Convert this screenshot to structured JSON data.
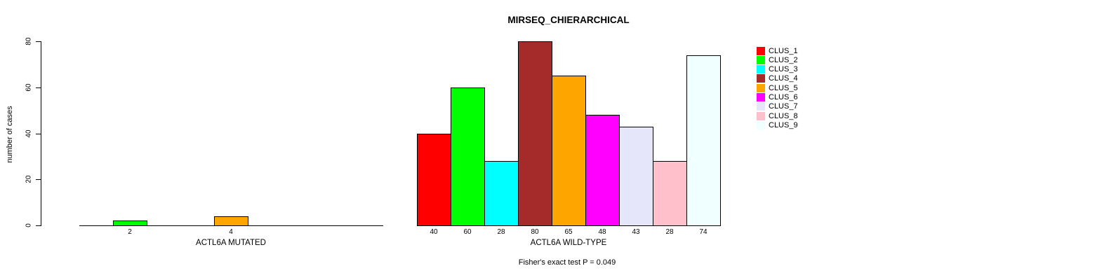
{
  "chart_data": {
    "type": "bar",
    "title": "MIRSEQ_CHIERARCHICAL",
    "ylabel": "number of cases",
    "ylim": [
      0,
      80
    ],
    "yticks": [
      0,
      20,
      40,
      60,
      80
    ],
    "grid": false,
    "legend_position": "top-right",
    "categories": [
      "CLUS_1",
      "CLUS_2",
      "CLUS_3",
      "CLUS_4",
      "CLUS_5",
      "CLUS_6",
      "CLUS_7",
      "CLUS_8",
      "CLUS_9"
    ],
    "colors": [
      "#FF0000",
      "#00FF00",
      "#00FFFF",
      "#A52A2A",
      "#FFA500",
      "#FF00FF",
      "#E6E6FA",
      "#FFC0CB",
      "#F0FFFF"
    ],
    "panels": [
      {
        "xlabel": "ACTL6A MUTATED",
        "values": [
          0,
          2,
          0,
          0,
          4,
          0,
          0,
          0,
          0
        ],
        "bar_labels": [
          "",
          "2",
          "",
          "",
          "4",
          "",
          "",
          "",
          ""
        ]
      },
      {
        "xlabel": "ACTL6A WILD-TYPE",
        "values": [
          40,
          60,
          28,
          80,
          65,
          48,
          43,
          28,
          74
        ],
        "bar_labels": [
          "40",
          "60",
          "28",
          "80",
          "65",
          "48",
          "43",
          "28",
          "74"
        ]
      }
    ],
    "annotation": "Fisher's exact test P = 0.049"
  },
  "legend": {
    "entries": [
      {
        "label": "CLUS_1",
        "color": "#FF0000"
      },
      {
        "label": "CLUS_2",
        "color": "#00FF00"
      },
      {
        "label": "CLUS_3",
        "color": "#00FFFF"
      },
      {
        "label": "CLUS_4",
        "color": "#A52A2A"
      },
      {
        "label": "CLUS_5",
        "color": "#FFA500"
      },
      {
        "label": "CLUS_6",
        "color": "#FF00FF"
      },
      {
        "label": "CLUS_7",
        "color": "#E6E6FA"
      },
      {
        "label": "CLUS_8",
        "color": "#FFC0CB"
      },
      {
        "label": "CLUS_9",
        "color": "#F0FFFF"
      }
    ]
  }
}
